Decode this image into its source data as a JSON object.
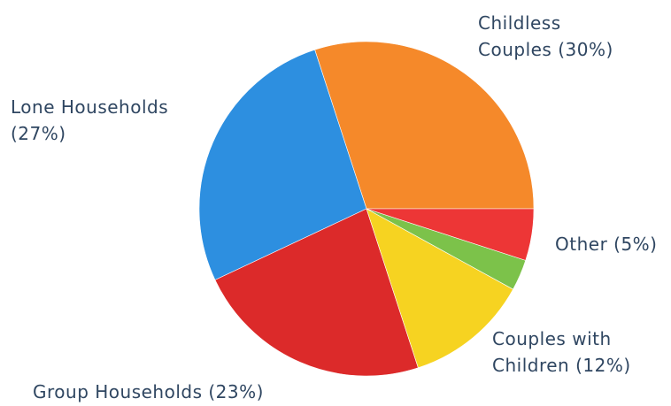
{
  "chart_data": {
    "type": "pie",
    "title": "",
    "start_angle_deg": 0,
    "direction": "counterclockwise",
    "slices": [
      {
        "label_lines": [
          "Childless",
          "Couples (30%)"
        ],
        "value": 30,
        "color": "#f5892a"
      },
      {
        "label_lines": [
          "Lone Households",
          "(27%)"
        ],
        "value": 27,
        "color": "#2d8fe0"
      },
      {
        "label_lines": [
          "Group Households (23%)"
        ],
        "value": 23,
        "color": "#dc2a2a"
      },
      {
        "label_lines": [
          "Couples with",
          "Children (12%)"
        ],
        "value": 12,
        "color": "#f6d321"
      },
      {
        "label_lines": [
          ""
        ],
        "value": 3,
        "color": "#7cc24a"
      },
      {
        "label_lines": [
          "Other (5%)"
        ],
        "value": 5,
        "color": "#ed3636"
      }
    ]
  }
}
